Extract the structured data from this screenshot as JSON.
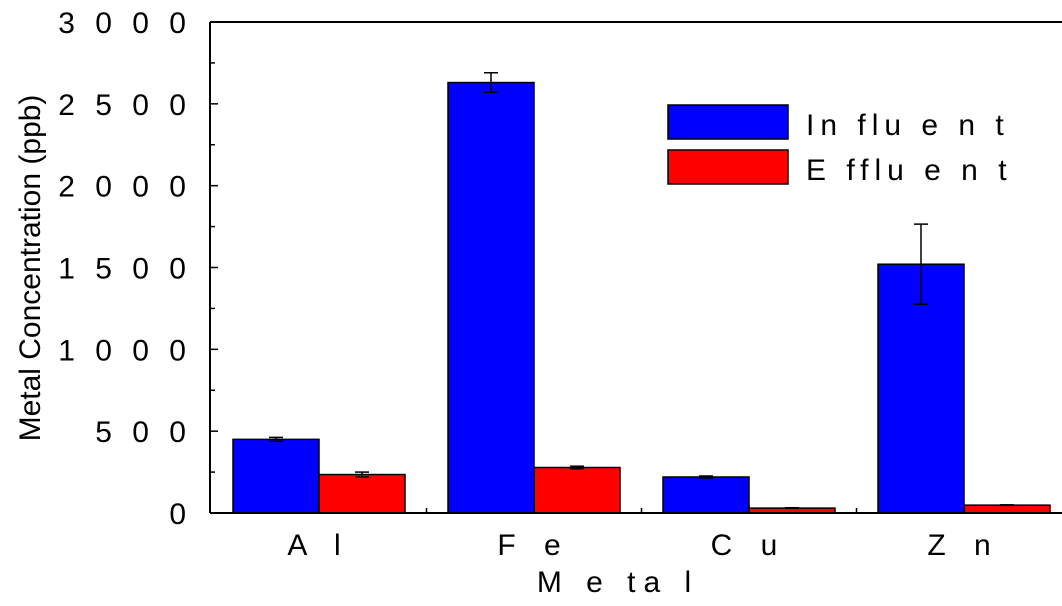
{
  "chart_data": {
    "type": "bar",
    "categories": [
      "A l",
      "F e",
      "C u",
      "Z n"
    ],
    "series": [
      {
        "name": "In flu e n t",
        "color": "#0000ff",
        "values": [
          450,
          2630,
          220,
          1520
        ],
        "errors": [
          12,
          60,
          6,
          245
        ]
      },
      {
        "name": "E fflu e n t",
        "color": "#ff0000",
        "values": [
          235,
          278,
          30,
          48
        ],
        "errors": [
          15,
          8,
          2,
          2
        ]
      }
    ],
    "xlabel": "M e ta l",
    "ylabel": "Metal Concentration (ppb)",
    "ylim": [
      0,
      3000
    ],
    "yticks": [
      "0",
      "5 0 0",
      "1 0 0 0",
      "1 5 0 0",
      "2 0 0 0",
      "2 5 0 0",
      "3 0 0 0"
    ],
    "ytick_values": [
      0,
      500,
      1000,
      1500,
      2000,
      2500,
      3000
    ],
    "legend_position": "top-right",
    "grid": false
  }
}
